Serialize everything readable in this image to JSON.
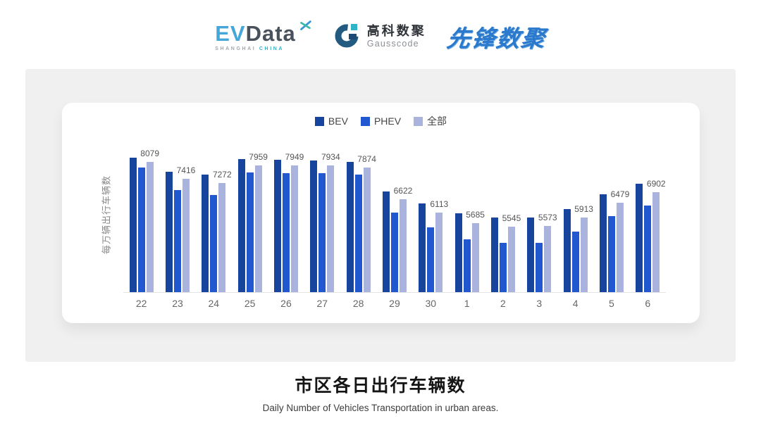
{
  "header": {
    "evdata_logo": {
      "ev": "EV",
      "data": "Data",
      "sub_shanghai": "SHANGHAI",
      "sub_china": "CHINA"
    },
    "gausscode_logo": {
      "cn": "高科数聚",
      "en": "Gausscode"
    },
    "pioneer_logo": {
      "text": "先锋数聚"
    }
  },
  "chart_data": {
    "type": "bar",
    "title": "市区各日出行车辆数",
    "subtitle": "Daily Number of Vehicles Transportation in urban areas.",
    "ylabel": "每万辆出行车辆数",
    "xlabel": "",
    "categories": [
      "22",
      "23",
      "24",
      "25",
      "26",
      "27",
      "28",
      "29",
      "30",
      "1",
      "2",
      "3",
      "4",
      "5",
      "6"
    ],
    "series": [
      {
        "name": "BEV",
        "color": "#17459E",
        "values": [
          8240,
          7700,
          7590,
          8190,
          8160,
          8130,
          8080,
          6935,
          6470,
          6090,
          5900,
          5925,
          6255,
          6825,
          7235
        ]
      },
      {
        "name": "PHEV",
        "color": "#2158CF",
        "values": [
          7860,
          6990,
          6800,
          7670,
          7645,
          7645,
          7590,
          6115,
          5520,
          5055,
          4920,
          4920,
          5355,
          5955,
          6390
        ]
      },
      {
        "name": "全部",
        "color": "#A9B3DE",
        "values": [
          8079,
          7416,
          7272,
          7959,
          7949,
          7934,
          7874,
          6622,
          6113,
          5685,
          5545,
          5573,
          5913,
          6479,
          6902
        ]
      }
    ],
    "bar_labels": [
      8079,
      7416,
      7272,
      7959,
      7949,
      7934,
      7874,
      6622,
      6113,
      5685,
      5545,
      5573,
      5913,
      6479,
      6902
    ],
    "label_series": "全部",
    "ylim": [
      3000,
      9100
    ],
    "grid": false,
    "legend_position": "top",
    "axis_line_color": "#e3e3e3"
  },
  "footer": {
    "title": "市区各日出行车辆数",
    "subtitle": "Daily Number of Vehicles Transportation in urban areas."
  }
}
